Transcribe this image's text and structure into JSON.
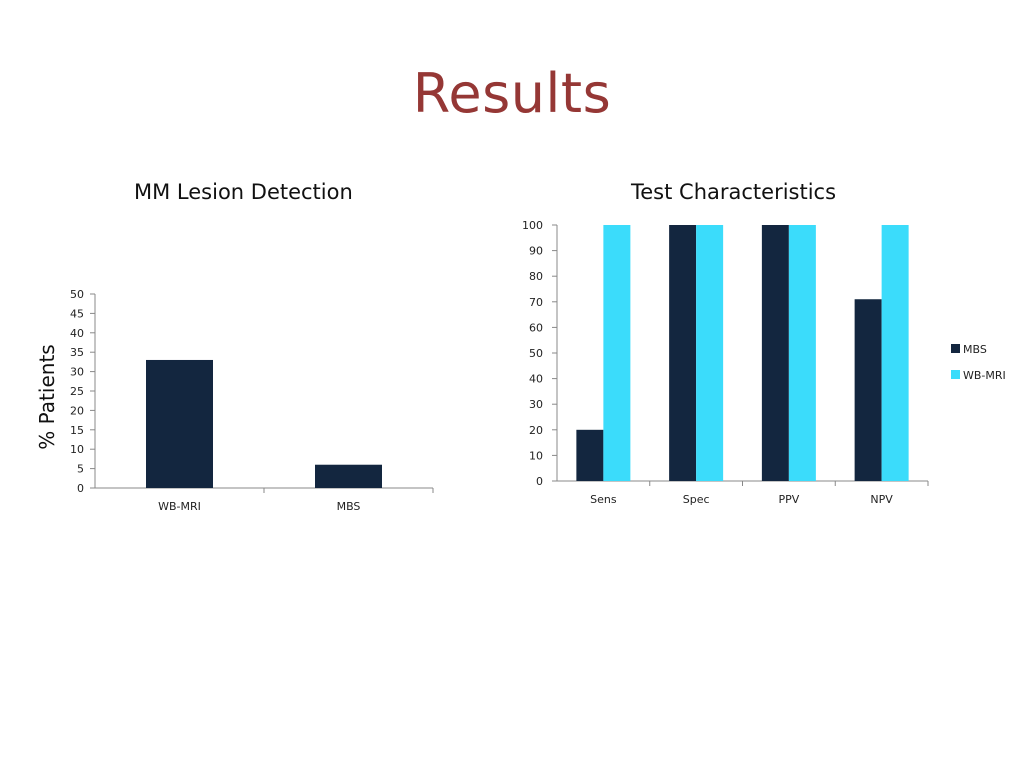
{
  "slide": {
    "title": "Results"
  },
  "colors": {
    "title": "#953735",
    "mbs": "#13263f",
    "wb_mri": "#3bdcfb",
    "axis": "#888888"
  },
  "chart_data": [
    {
      "type": "bar",
      "title": "MM Lesion Detection",
      "xlabel": "",
      "ylabel": "% Patients",
      "categories": [
        "WB-MRI",
        "MBS"
      ],
      "values": [
        33,
        6
      ],
      "ylim": [
        0,
        50
      ],
      "yticks": [
        0,
        5,
        10,
        15,
        20,
        25,
        30,
        35,
        40,
        45,
        50
      ],
      "grid": false,
      "legend": "none"
    },
    {
      "type": "bar",
      "title": "Test Characteristics",
      "xlabel": "",
      "ylabel": "",
      "categories": [
        "Sens",
        "Spec",
        "PPV",
        "NPV"
      ],
      "series": [
        {
          "name": "MBS",
          "values": [
            20,
            100,
            100,
            71
          ]
        },
        {
          "name": "WB-MRI",
          "values": [
            100,
            100,
            100,
            100
          ]
        }
      ],
      "ylim": [
        0,
        100
      ],
      "yticks": [
        0,
        10,
        20,
        30,
        40,
        50,
        60,
        70,
        80,
        90,
        100
      ],
      "grid": false,
      "legend": "right"
    }
  ]
}
